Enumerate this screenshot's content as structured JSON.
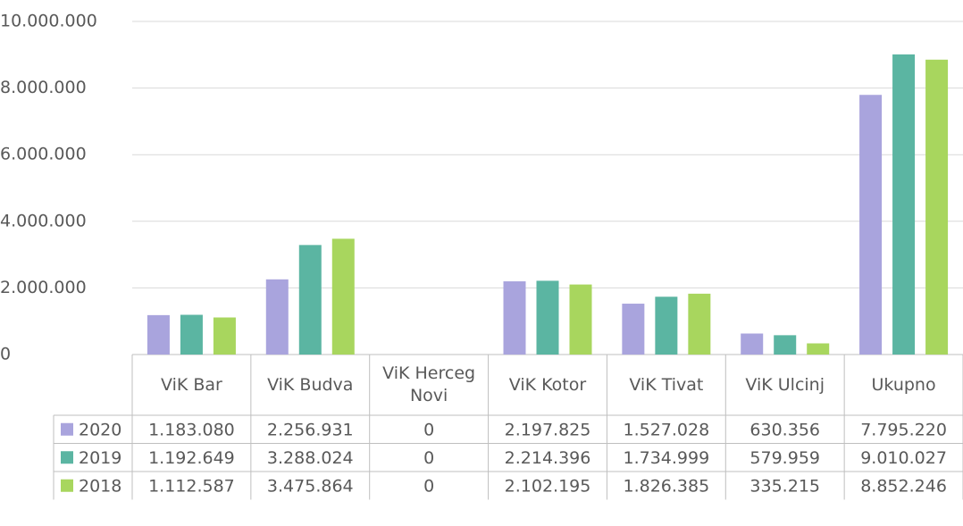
{
  "chart_data": {
    "type": "bar",
    "categories": [
      "ViK Bar",
      "ViK Budva",
      "ViK Herceg Novi",
      "ViK Kotor",
      "ViK Tivat",
      "ViK Ulcinj",
      "Ukupno"
    ],
    "series": [
      {
        "name": "2020",
        "color": "#a9a4dd",
        "values": [
          1183080,
          2256931,
          0,
          2197825,
          1527028,
          630356,
          7795220
        ],
        "value_labels": [
          "1.183.080",
          "2.256.931",
          "0",
          "2.197.825",
          "1.527.028",
          "630.356",
          "7.795.220"
        ]
      },
      {
        "name": "2019",
        "color": "#5bb5a2",
        "values": [
          1192649,
          3288024,
          0,
          2214396,
          1734999,
          579959,
          9010027
        ],
        "value_labels": [
          "1.192.649",
          "3.288.024",
          "0",
          "2.214.396",
          "1.734.999",
          "579.959",
          "9.010.027"
        ]
      },
      {
        "name": "2018",
        "color": "#a8d65e",
        "values": [
          1112587,
          3475864,
          0,
          2102195,
          1826385,
          335215,
          8852246
        ],
        "value_labels": [
          "1.112.587",
          "3.475.864",
          "0",
          "2.102.195",
          "1.826.385",
          "335.215",
          "8.852.246"
        ]
      }
    ],
    "ylim": [
      0,
      10000000
    ],
    "yticks": [
      0,
      {
        "value": 2000000,
        "label": "2.000.000"
      },
      {
        "value": 4000000,
        "label": "4.000.000"
      },
      {
        "value": 6000000,
        "label": "6.000.000"
      },
      {
        "value": 8000000,
        "label": "8.000.000"
      },
      {
        "value": 10000000,
        "label": "10.000.000"
      }
    ],
    "grid": true
  }
}
